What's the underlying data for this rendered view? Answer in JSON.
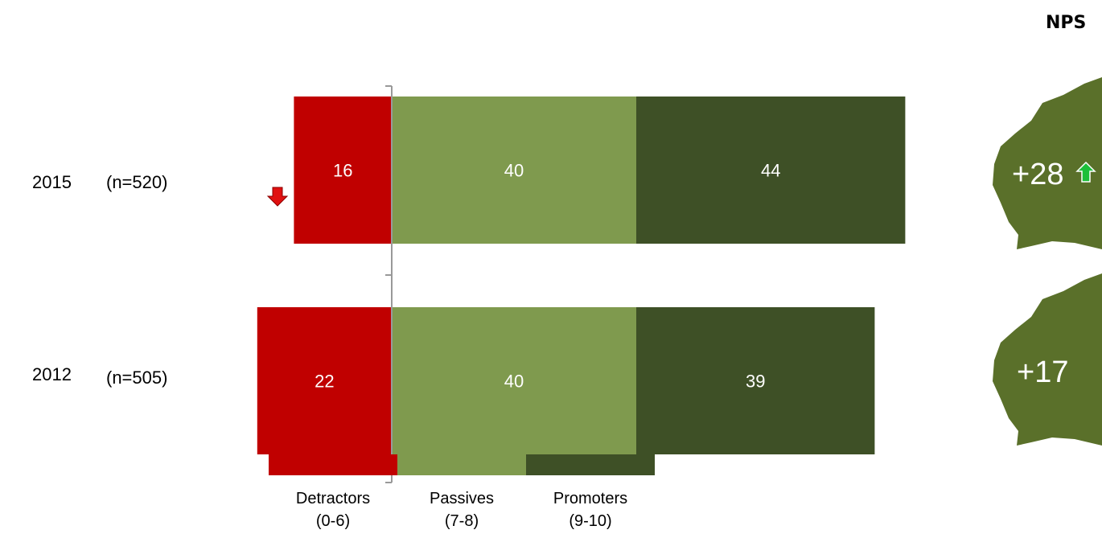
{
  "nps_header": "NPS",
  "rows": [
    {
      "year": "2015",
      "n": "(n=520)",
      "nps": "+28",
      "nps_trend": "up",
      "detractor_trend": "down"
    },
    {
      "year": "2012",
      "n": "(n=505)",
      "nps": "+17",
      "nps_trend": "",
      "detractor_trend": ""
    }
  ],
  "legend": [
    {
      "label": "Detractors",
      "range": "(0-6)",
      "color": "#c00000"
    },
    {
      "label": "Passives",
      "range": "(7-8)",
      "color": "#7f9a4e"
    },
    {
      "label": "Promoters",
      "range": "(9-10)",
      "color": "#3e5026"
    }
  ],
  "colors": {
    "detractors": "#c00000",
    "passives": "#7f9a4e",
    "promoters": "#3e5026",
    "map": "#5a702a",
    "up_arrow": "#1dbf3a",
    "down_arrow": "#e01010",
    "axis": "#999999"
  },
  "chart_data": {
    "type": "bar",
    "orientation": "horizontal-diverging",
    "categories": [
      "2015",
      "2012"
    ],
    "series": [
      {
        "name": "Detractors",
        "values": [
          16,
          22
        ]
      },
      {
        "name": "Passives",
        "values": [
          40,
          40
        ]
      },
      {
        "name": "Promoters",
        "values": [
          44,
          39
        ]
      }
    ],
    "data_labels": [
      [
        "16",
        "40",
        "44"
      ],
      [
        "22",
        "40",
        "39"
      ]
    ],
    "baseline": "between detractors and passives",
    "grid": false
  }
}
